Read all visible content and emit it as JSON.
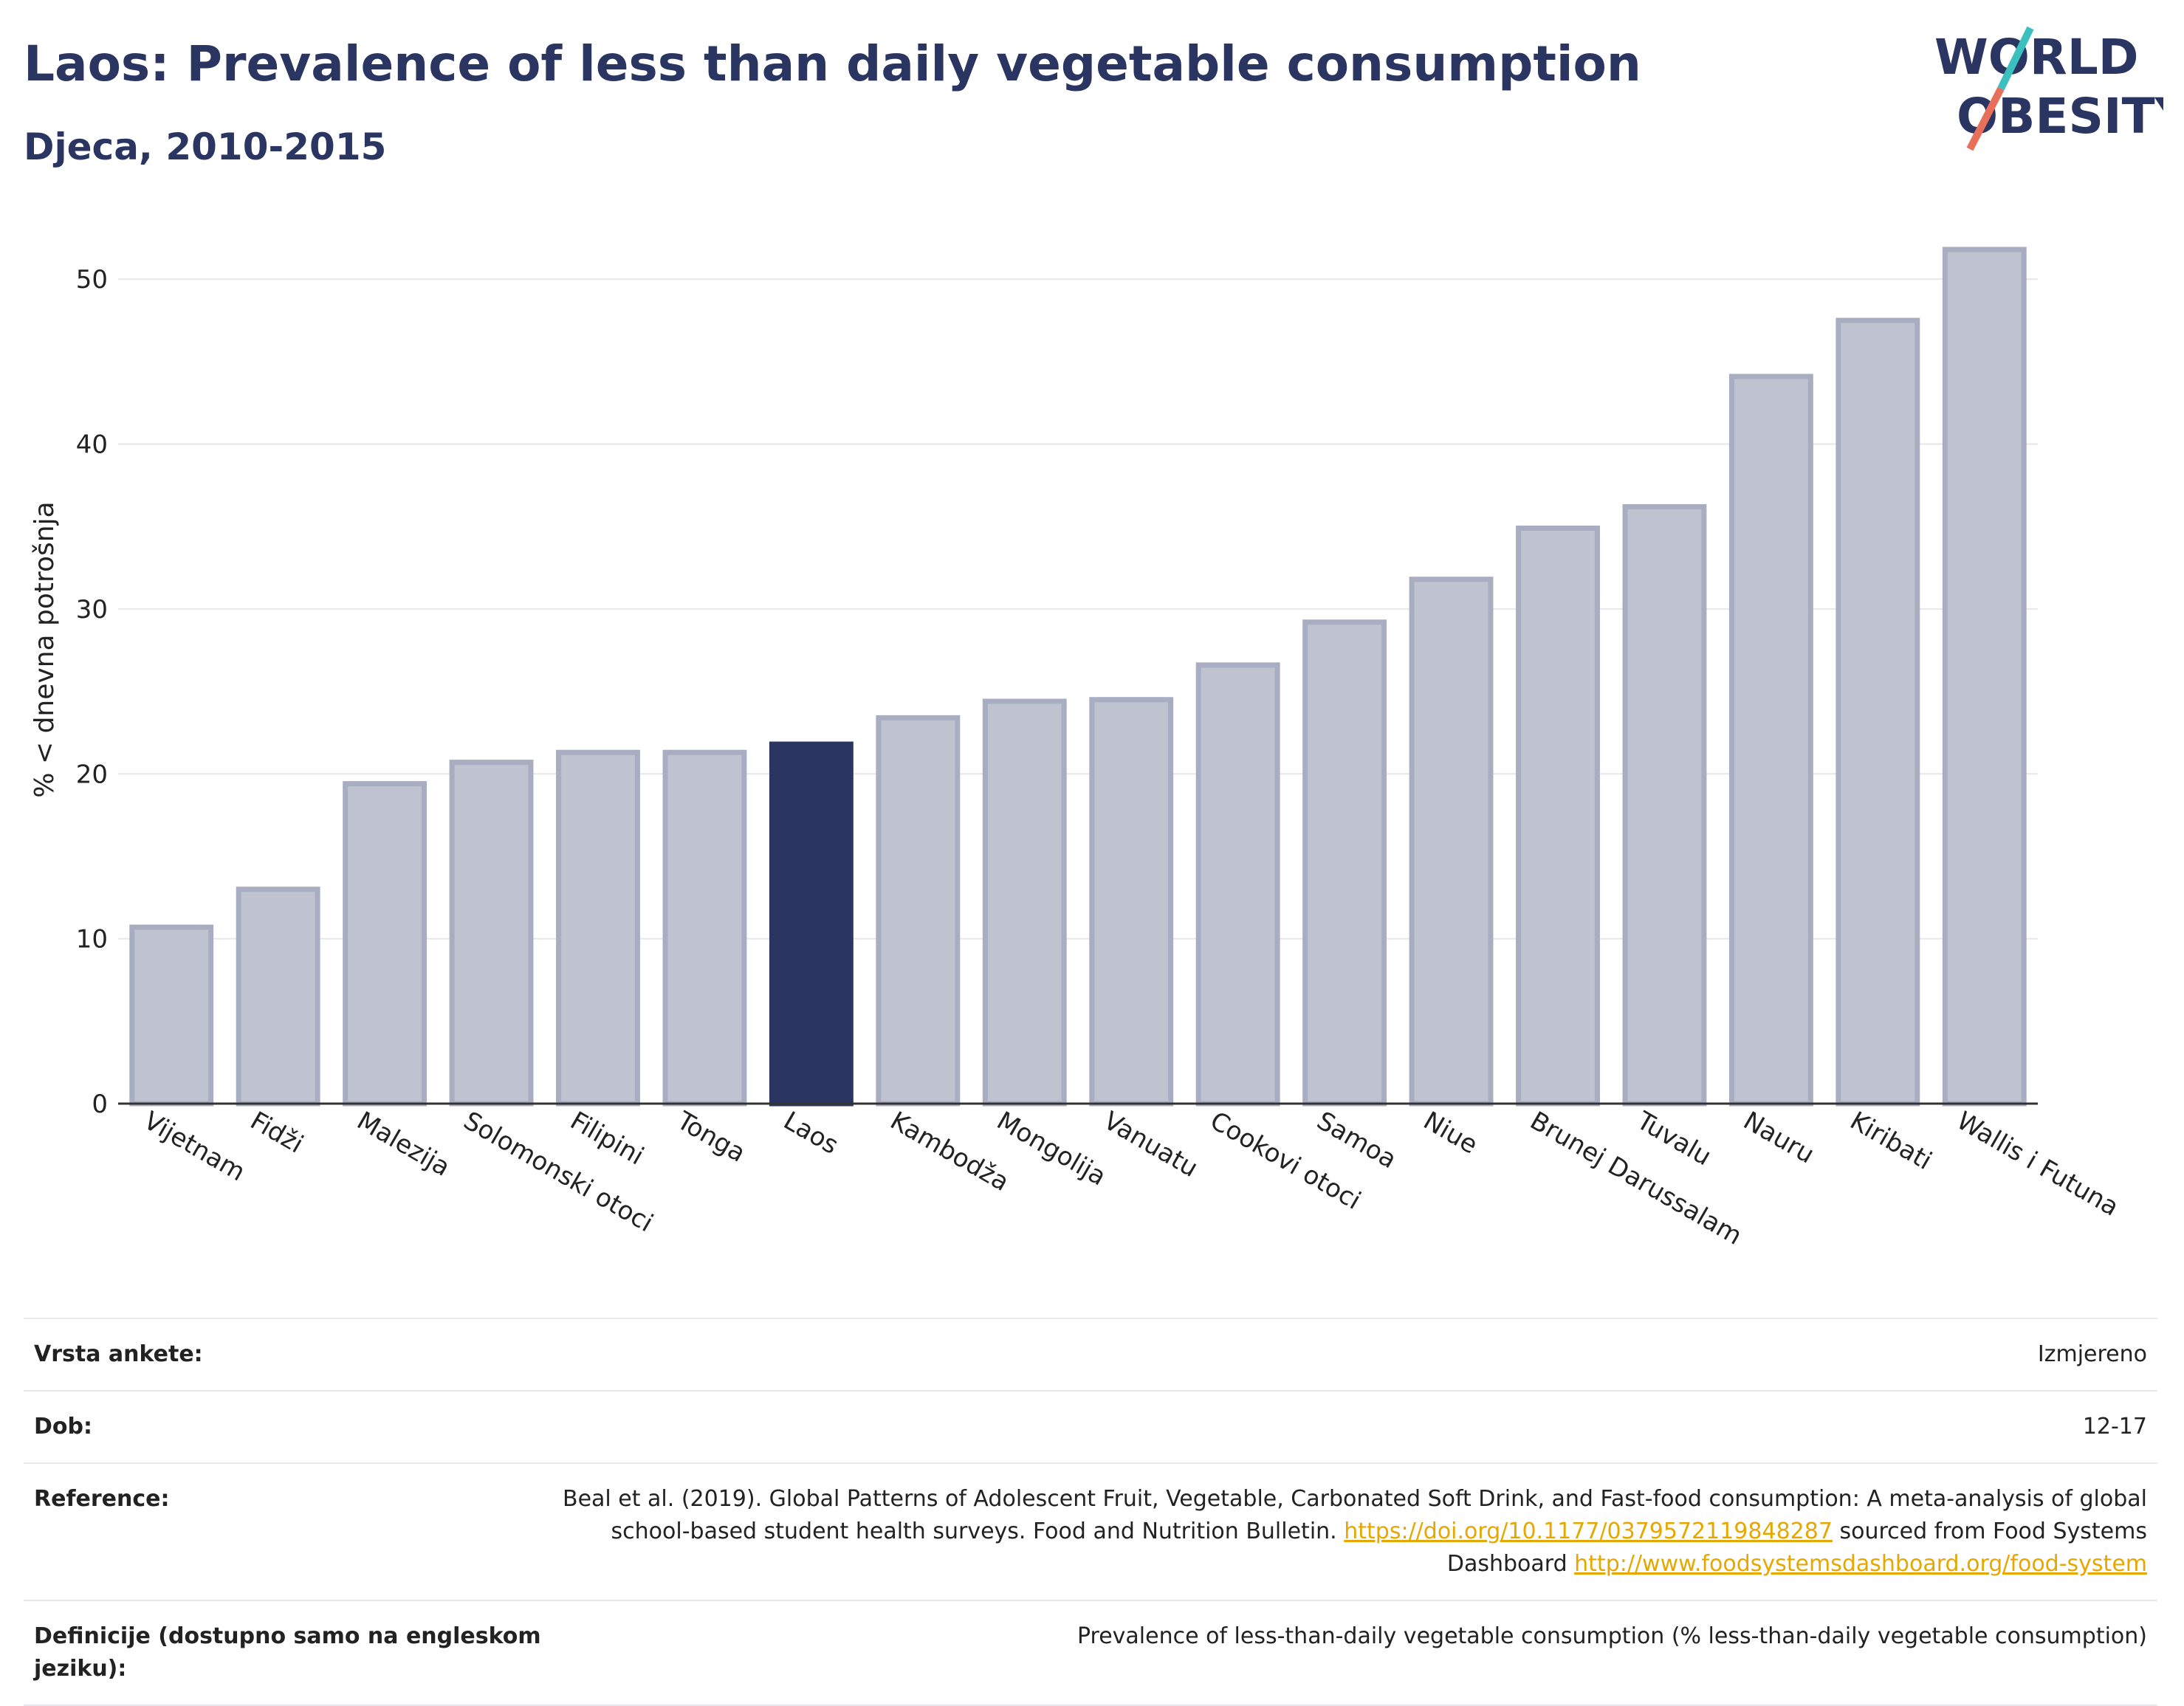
{
  "title": "Laos: Prevalence of less than daily vegetable consumption",
  "subtitle": "Djeca, 2010-2015",
  "logo": {
    "line1": "WORLD",
    "line2": "OBESITY"
  },
  "colors": {
    "highlight": "#2a3561",
    "bar": "#bfc2cf",
    "bar_border": "#a8adc2",
    "accent_teal": "#3bbfbf",
    "accent_red": "#e8705a",
    "link": "#e6a800"
  },
  "chart_data": {
    "type": "bar",
    "title": "Laos: Prevalence of less than daily vegetable consumption",
    "subtitle": "Djeca, 2010-2015",
    "ylabel": "% < dnevna potrošnja",
    "xlabel": "",
    "ylim": [
      0,
      53.5
    ],
    "yticks": [
      0,
      10,
      20,
      30,
      40,
      50
    ],
    "grid": true,
    "highlight": "Laos",
    "categories": [
      "Vijetnam",
      "Fidži",
      "Malezija",
      "Solomonski otoci",
      "Filipini",
      "Tonga",
      "Laos",
      "Kambodža",
      "Mongolija",
      "Vanuatu",
      "Cookovi otoci",
      "Samoa",
      "Niue",
      "Brunej Darussalam",
      "Tuvalu",
      "Nauru",
      "Kiribati",
      "Wallis i Futuna"
    ],
    "values": [
      10.7,
      13.0,
      19.4,
      20.7,
      21.3,
      21.3,
      21.8,
      23.4,
      24.4,
      24.5,
      26.6,
      29.2,
      31.8,
      34.9,
      36.2,
      44.1,
      47.5,
      51.8
    ]
  },
  "meta": [
    {
      "key": "Vrsta ankete:",
      "value": "Izmjereno"
    },
    {
      "key": "Dob:",
      "value": "12-17"
    },
    {
      "key": "Reference:",
      "value_pre": "Beal et al. (2019). Global Patterns of Adolescent Fruit, Vegetable, Carbonated Soft Drink, and Fast-food consumption: A meta-analysis of global school-based student health surveys. Food and Nutrition Bulletin. ",
      "link1": "https://doi.org/10.1177/0379572119848287",
      "value_mid": " sourced from Food Systems Dashboard ",
      "link2": "http://www.foodsystemsdashboard.org/food-system"
    },
    {
      "key": "Definicije (dostupno samo na engleskom jeziku):",
      "value": "Prevalence of less-than-daily vegetable consumption (% less-than-daily vegetable consumption)"
    }
  ]
}
